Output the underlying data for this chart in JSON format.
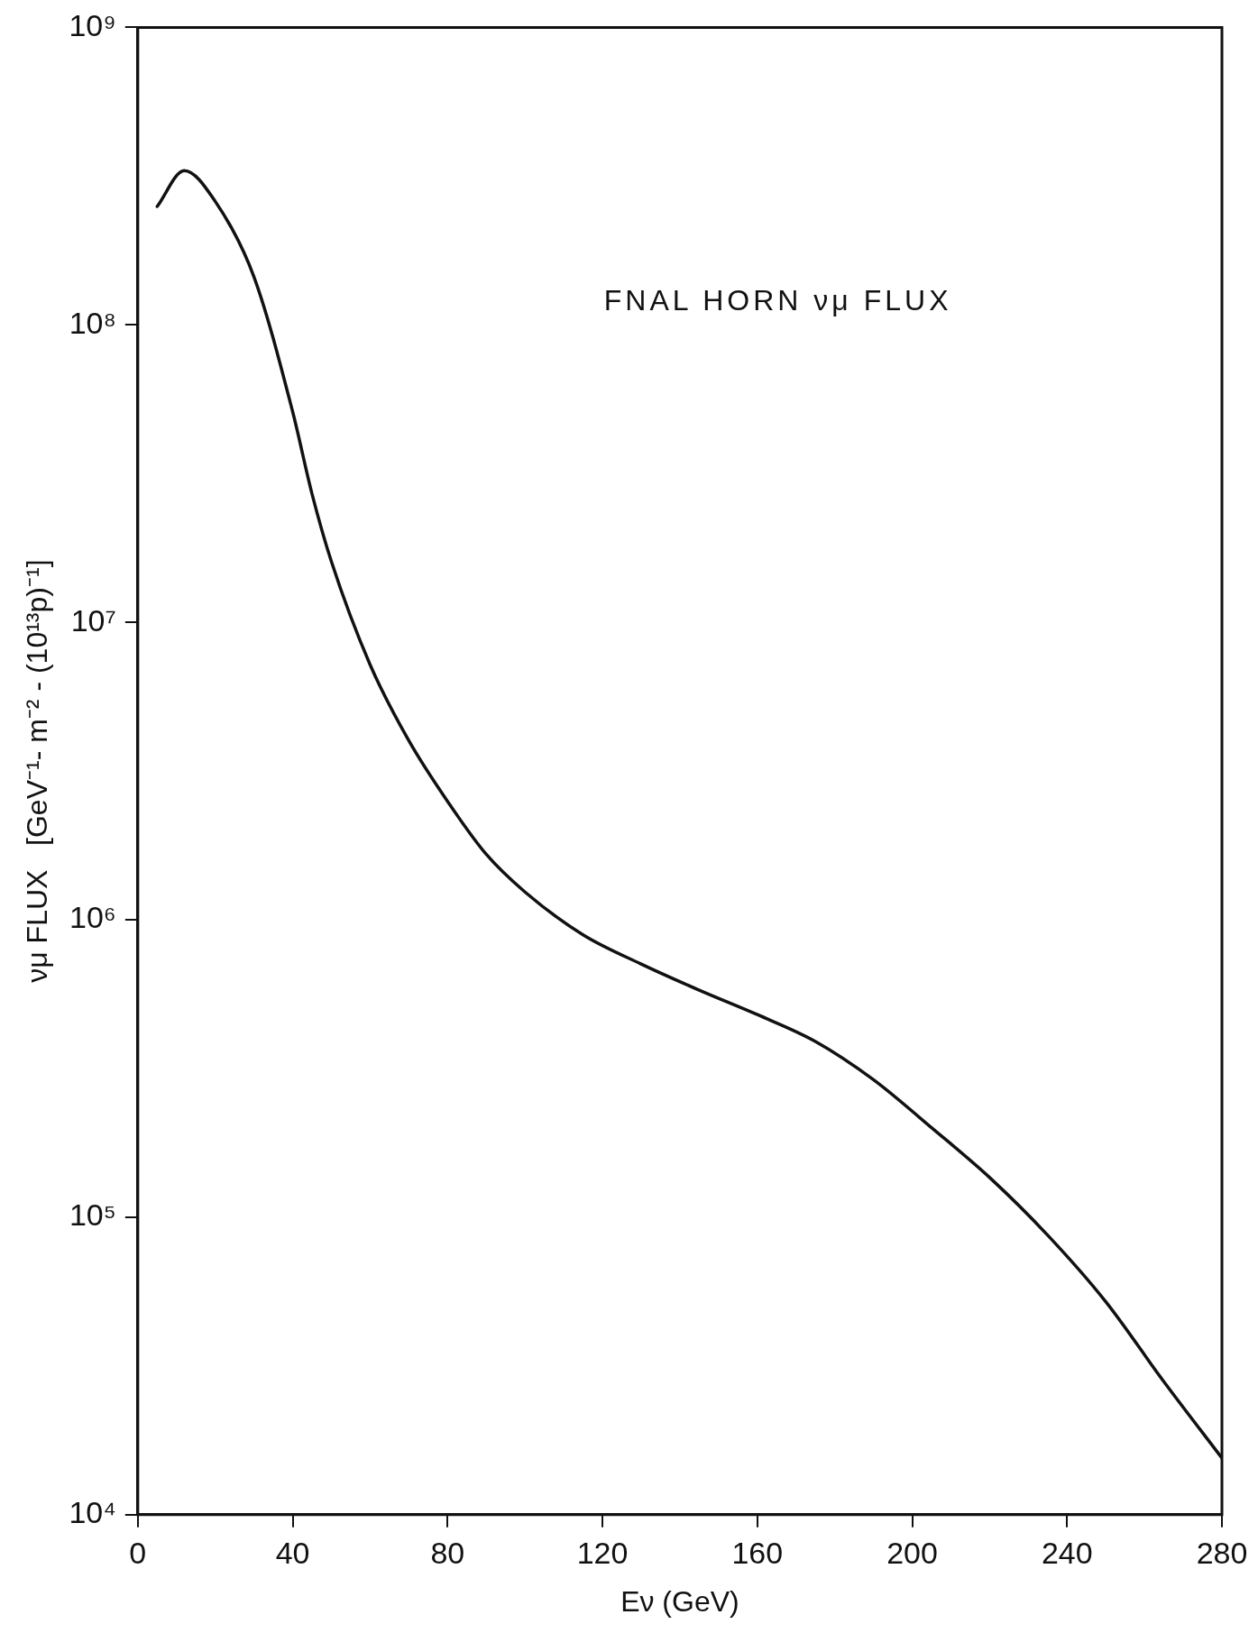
{
  "chart_data": {
    "type": "line",
    "xlabel": "Eν (GeV)",
    "ylabel": "νμ FLUX   [GeV⁻¹- m⁻² - (10¹³p)⁻¹]",
    "annotations": [
      "FNAL HORN νμ FLUX"
    ],
    "log": "y",
    "grid": false,
    "legend": false,
    "marker": "none",
    "line_style": "solid",
    "xlim": [
      0,
      280
    ],
    "xticks": [
      0,
      40,
      80,
      120,
      160,
      200,
      240,
      280
    ],
    "ylim": [
      10000,
      1000000000
    ],
    "yticks": [
      {
        "value": 10000,
        "label": "10⁴"
      },
      {
        "value": 100000,
        "label": "10⁵"
      },
      {
        "value": 1000000,
        "label": "10⁶"
      },
      {
        "value": 10000000,
        "label": "10⁷"
      },
      {
        "value": 100000000,
        "label": "10⁸"
      },
      {
        "value": 1000000000,
        "label": "10⁹"
      }
    ],
    "series": [
      {
        "color": "#111111",
        "x": [
          5,
          12,
          20,
          30,
          40,
          45,
          50,
          60,
          70,
          80,
          90,
          100,
          115,
          130,
          145,
          160,
          175,
          190,
          205,
          220,
          235,
          250,
          265,
          280
        ],
        "values": [
          250000000,
          330000000,
          260000000,
          145000000,
          51000000,
          27000000,
          16000000,
          7200000,
          4000000,
          2500000,
          1660000,
          1240000,
          890000,
          710000,
          580000,
          480000,
          390000,
          290000,
          200000,
          136000,
          87000,
          52000,
          28000,
          15500
        ]
      }
    ]
  }
}
